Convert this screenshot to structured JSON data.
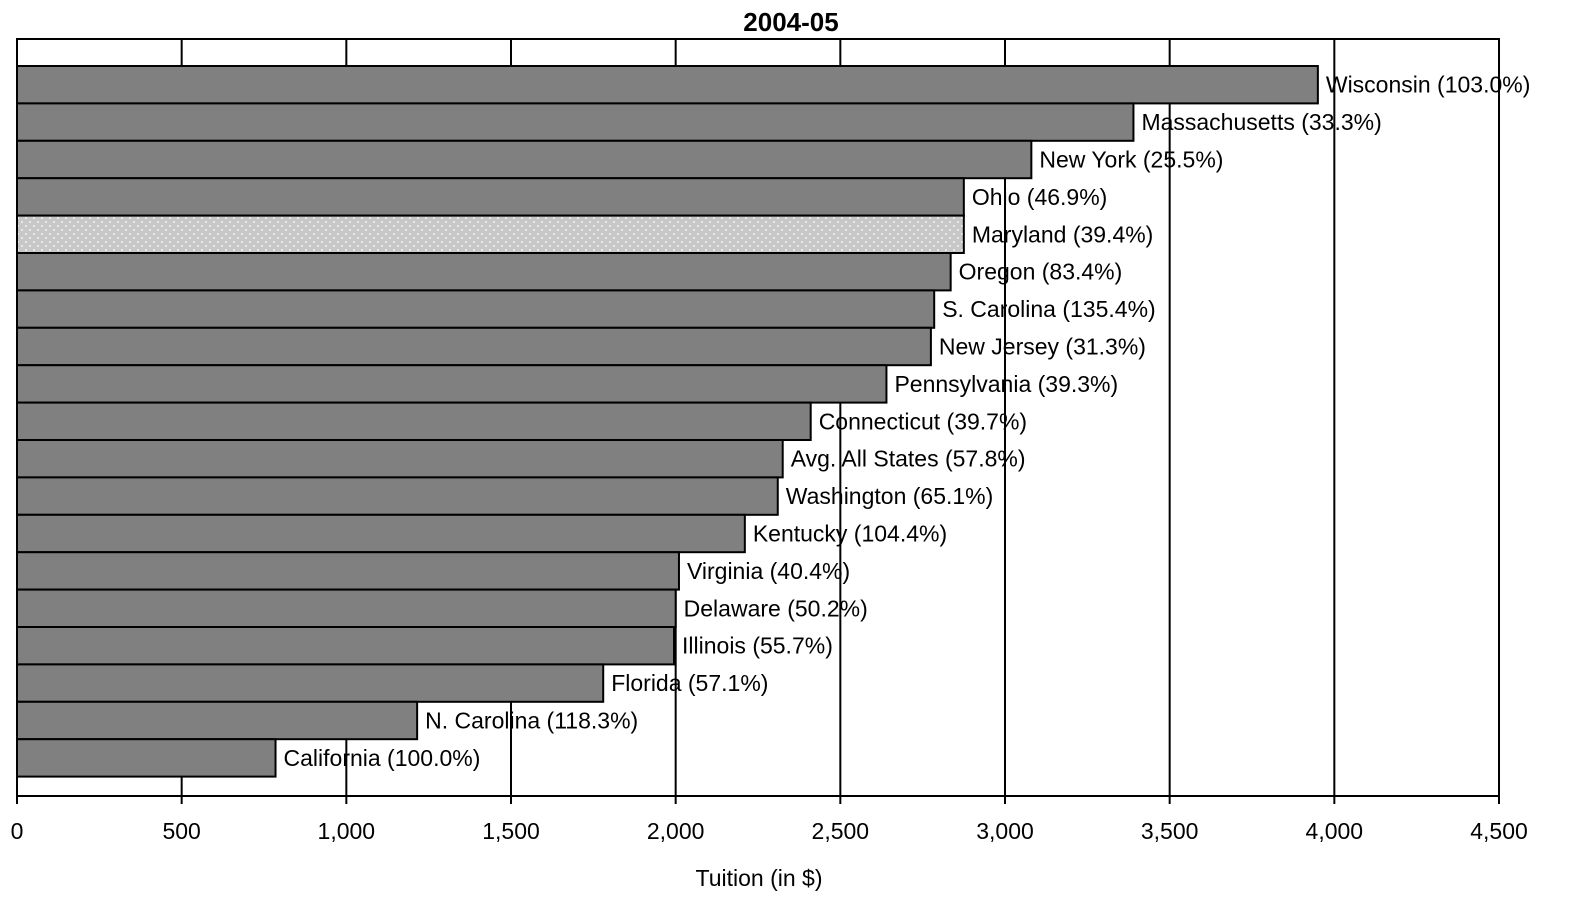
{
  "chart_data": {
    "type": "bar",
    "orientation": "horizontal",
    "title": "2004-05",
    "xlabel": "Tuition (in $)",
    "ylabel": "",
    "xlim": [
      0,
      4500
    ],
    "xticks": [
      0,
      500,
      1000,
      1500,
      2000,
      2500,
      3000,
      3500,
      4000,
      4500
    ],
    "xtick_labels": [
      "0",
      "500",
      "1,000",
      "1,500",
      "2,000",
      "2,500",
      "3,000",
      "3,500",
      "4,000",
      "4,500"
    ],
    "grid": "vertical",
    "legend": "none",
    "bar_color": "#808080",
    "highlight_color": "#c8c8c8",
    "categories": [
      "Wisconsin (103.0%)",
      "Massachusetts (33.3%)",
      "New York (25.5%)",
      "Ohio (46.9%)",
      "Maryland (39.4%)",
      "Oregon (83.4%)",
      "S. Carolina (135.4%)",
      "New Jersey (31.3%)",
      "Pennsylvania (39.3%)",
      "Connecticut (39.7%)",
      "Avg. All States (57.8%)",
      "Washington (65.1%)",
      "Kentucky (104.4%)",
      "Virginia (40.4%)",
      "Delaware (50.2%)",
      "Illinois (55.7%)",
      "Florida (57.1%)",
      "N. Carolina (118.3%)",
      "California (100.0%)"
    ],
    "values": [
      3950,
      3390,
      3080,
      2875,
      2875,
      2835,
      2785,
      2775,
      2640,
      2410,
      2325,
      2310,
      2210,
      2010,
      2000,
      1995,
      1780,
      1215,
      785
    ],
    "highlighted": [
      false,
      false,
      false,
      false,
      true,
      false,
      false,
      false,
      false,
      false,
      false,
      false,
      false,
      false,
      false,
      false,
      false,
      false,
      false
    ]
  }
}
